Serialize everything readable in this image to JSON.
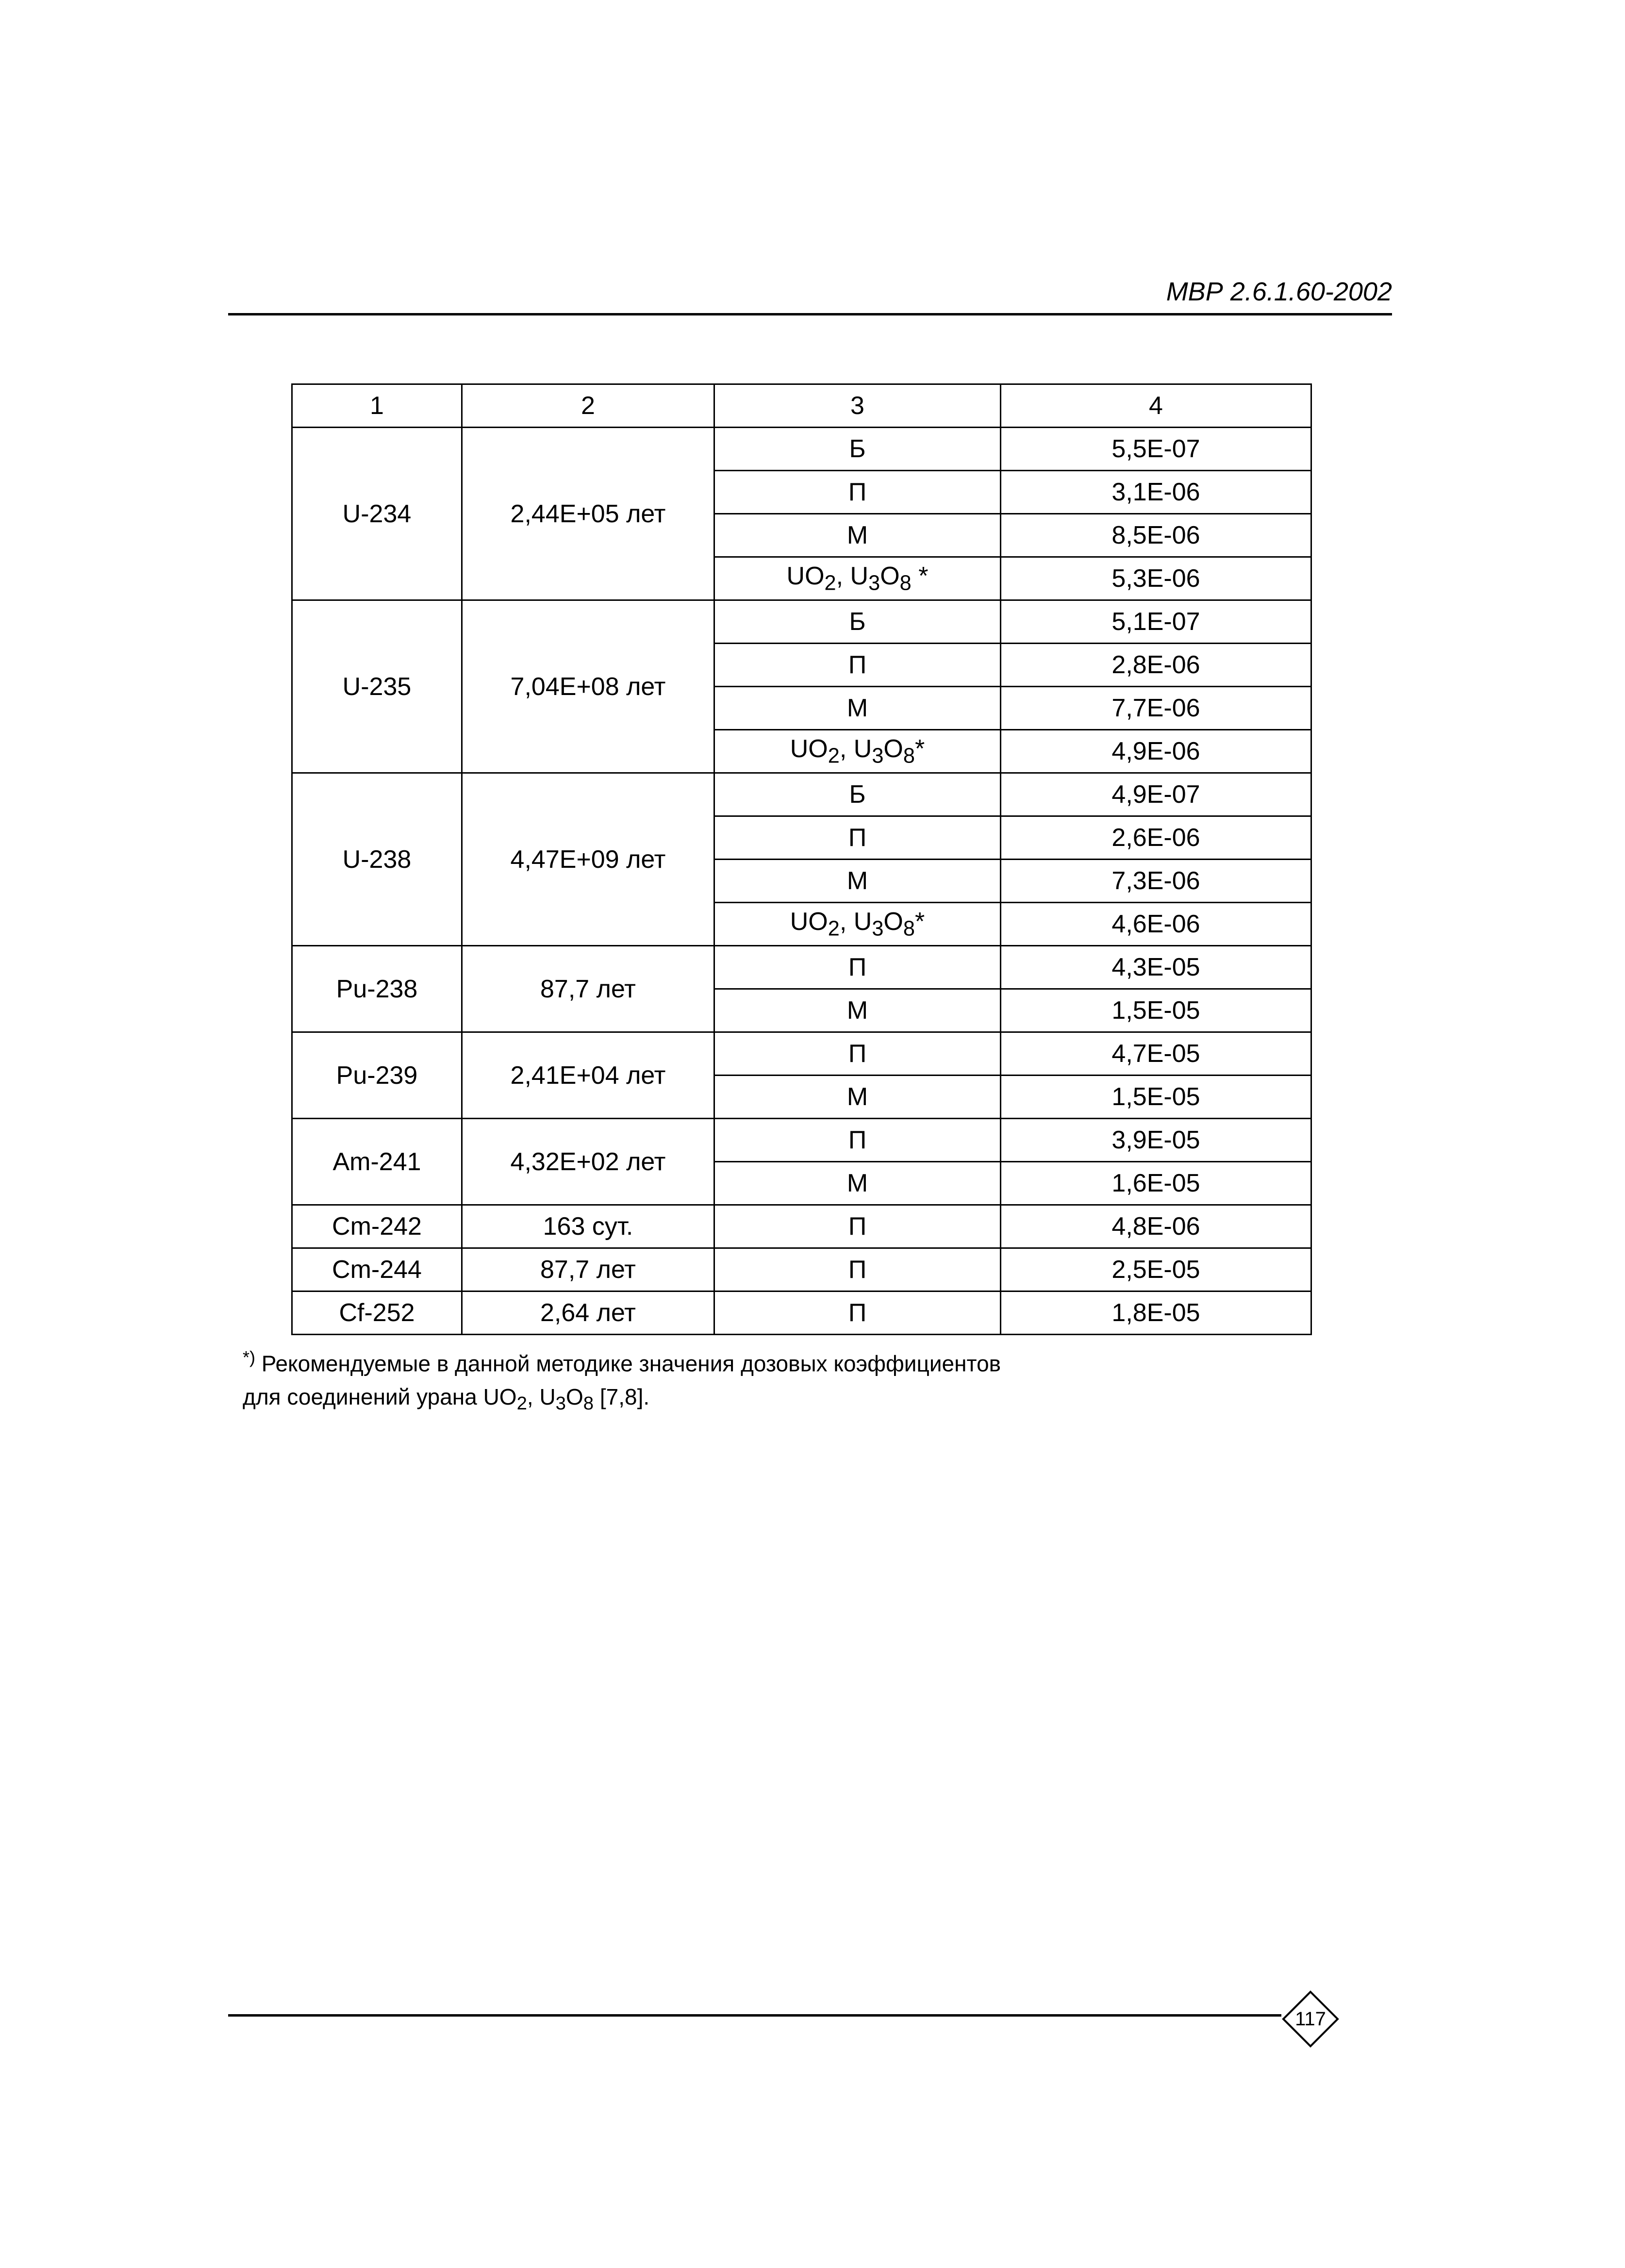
{
  "header": {
    "doc_code": "МВР 2.6.1.60-2002"
  },
  "table": {
    "col_headers": [
      "1",
      "2",
      "3",
      "4"
    ],
    "groups": [
      {
        "c1": "U-234",
        "c2": "2,44E+05 лет",
        "rows": [
          {
            "c3": "Б",
            "c4": "5,5E-07"
          },
          {
            "c3": "П",
            "c4": "3,1E-06"
          },
          {
            "c3": "М",
            "c4": "8,5E-06"
          },
          {
            "c3_html": "UO<sub>2</sub>, U<sub>3</sub>O<sub>8</sub> *",
            "c4": "5,3E-06"
          }
        ]
      },
      {
        "c1": "U-235",
        "c2": "7,04E+08 лет",
        "rows": [
          {
            "c3": "Б",
            "c4": "5,1E-07"
          },
          {
            "c3": "П",
            "c4": "2,8E-06"
          },
          {
            "c3": "М",
            "c4": "7,7E-06"
          },
          {
            "c3_html": "UO<sub>2</sub>, U<sub>3</sub>O<sub>8</sub>*",
            "c4": "4,9E-06"
          }
        ]
      },
      {
        "c1": "U-238",
        "c2": "4,47E+09 лет",
        "rows": [
          {
            "c3": "Б",
            "c4": "4,9E-07"
          },
          {
            "c3": "П",
            "c4": "2,6E-06"
          },
          {
            "c3": "М",
            "c4": "7,3E-06"
          },
          {
            "c3_html": "UO<sub>2</sub>, U<sub>3</sub>O<sub>8</sub>*",
            "c4": "4,6E-06"
          }
        ]
      },
      {
        "c1": "Pu-238",
        "c2": "87,7 лет",
        "rows": [
          {
            "c3": "П",
            "c4": "4,3E-05"
          },
          {
            "c3": "М",
            "c4": "1,5E-05"
          }
        ]
      },
      {
        "c1": "Pu-239",
        "c2": "2,41E+04 лет",
        "rows": [
          {
            "c3": "П",
            "c4": "4,7E-05"
          },
          {
            "c3": "М",
            "c4": "1,5E-05"
          }
        ]
      },
      {
        "c1": "Am-241",
        "c2": "4,32E+02 лет",
        "rows": [
          {
            "c3": "П",
            "c4": "3,9E-05"
          },
          {
            "c3": "М",
            "c4": "1,6E-05"
          }
        ]
      },
      {
        "c1": "Cm-242",
        "c2": "163 сут.",
        "rows": [
          {
            "c3": "П",
            "c4": "4,8E-06"
          }
        ]
      },
      {
        "c1": "Cm-244",
        "c2": "87,7 лет",
        "rows": [
          {
            "c3": "П",
            "c4": "2,5E-05"
          }
        ]
      },
      {
        "c1": "Cf-252",
        "c2": "2,64 лет",
        "rows": [
          {
            "c3": "П",
            "c4": "1,8E-05"
          }
        ]
      }
    ]
  },
  "footnote": {
    "marker": "*)",
    "line1": "Рекомендуемые в данной методике значения дозовых коэффициентов",
    "line2_prefix": "для соединений урана ",
    "line2_chem_html": "UO<sub>2</sub>, U<sub>3</sub>O<sub>8</sub>",
    "line2_suffix": " [7,8]."
  },
  "page_number": "117",
  "style": {
    "border_color": "#000000",
    "font_size_cell": 52,
    "font_size_header": 54,
    "font_size_footnote": 46,
    "bg": "#ffffff"
  }
}
